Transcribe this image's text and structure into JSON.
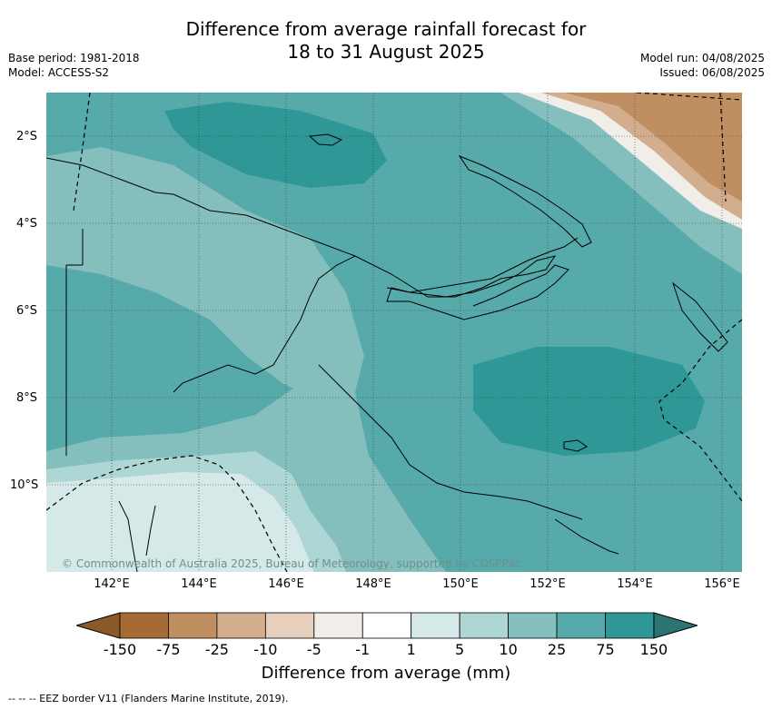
{
  "title_line1": "Difference from average rainfall forecast for",
  "title_line2": "18 to 31 August 2025",
  "base_period": "Base period: 1981-2018",
  "model": "Model: ACCESS-S2",
  "model_run": "Model run: 04/08/2025",
  "issued": "Issued: 06/08/2025",
  "copyright": "© Commonwealth of Australia 2025, Bureau of Meteorology, supported by COSPPac",
  "lat_labels": [
    "2°S",
    "4°S",
    "6°S",
    "8°S",
    "10°S"
  ],
  "lon_labels": [
    "142°E",
    "144°E",
    "146°E",
    "148°E",
    "150°E",
    "152°E",
    "154°E",
    "156°E"
  ],
  "colorbar": {
    "title": "Difference from average (mm)",
    "ticks": [
      "-150",
      "-75",
      "-25",
      "-10",
      "-5",
      "-1",
      "1",
      "5",
      "10",
      "25",
      "75",
      "150"
    ],
    "colors": [
      "#a66b35",
      "#bf8f62",
      "#d2ae8e",
      "#e6d0bd",
      "#f1ede8",
      "#ffffff",
      "#d5e9e8",
      "#aed6d5",
      "#84bfbe",
      "#56aaa9",
      "#2f9897"
    ],
    "extend_low_color": "#8a5a2b",
    "extend_high_color": "#2b7473"
  },
  "footer": "--  --  -- EEZ border V11 (Flanders Marine Institute, 2019)."
}
